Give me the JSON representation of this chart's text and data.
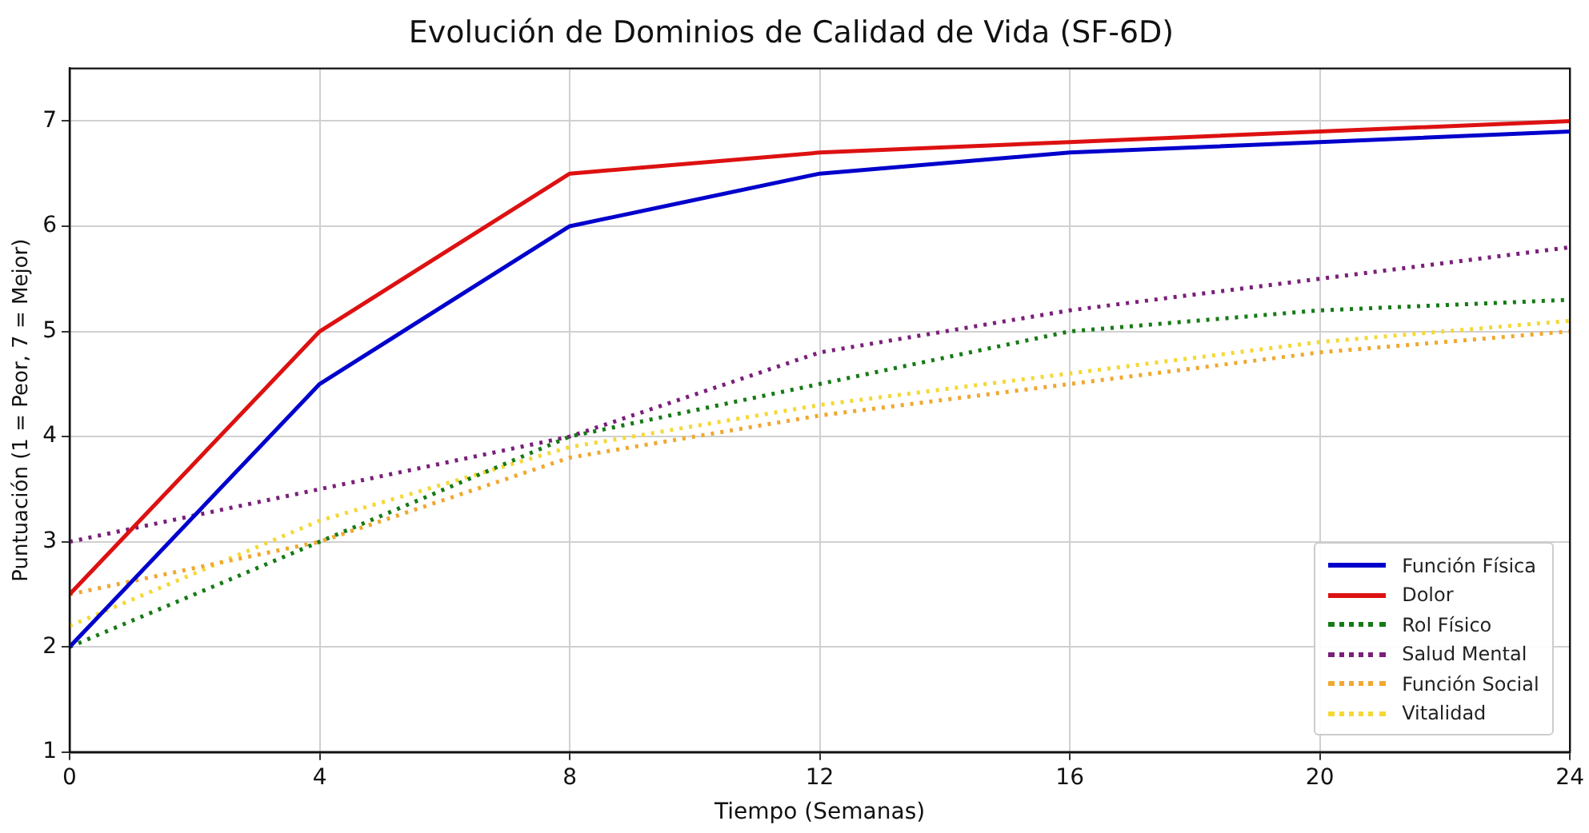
{
  "chart_data": {
    "type": "line",
    "title": "Evolución de Dominios de Calidad de Vida (SF-6D)",
    "xlabel": "Tiempo (Semanas)",
    "ylabel": "Puntuación (1 = Peor, 7 = Mejor)",
    "x": [
      0,
      4,
      8,
      12,
      16,
      20,
      24
    ],
    "series": [
      {
        "name": "Función Física",
        "color": "#0000cc",
        "line_style": "solid",
        "values": [
          2,
          4.5,
          6,
          6.5,
          6.7,
          6.8,
          6.9
        ]
      },
      {
        "name": "Dolor",
        "color": "#dd1111",
        "line_style": "solid",
        "values": [
          2.5,
          5,
          6.5,
          6.7,
          6.8,
          6.9,
          7.0
        ]
      },
      {
        "name": "Rol Físico",
        "color": "#167a16",
        "line_style": "dotted",
        "values": [
          2,
          3,
          4,
          4.5,
          5,
          5.2,
          5.3
        ]
      },
      {
        "name": "Salud Mental",
        "color": "#7a1f7a",
        "line_style": "dotted",
        "values": [
          3,
          3.5,
          4,
          4.8,
          5.2,
          5.5,
          5.8
        ]
      },
      {
        "name": "Función Social",
        "color": "#f0a830",
        "line_style": "dotted",
        "values": [
          2.5,
          3,
          3.8,
          4.2,
          4.5,
          4.8,
          5.0
        ]
      },
      {
        "name": "Vitalidad",
        "color": "#f5d836",
        "line_style": "dotted",
        "values": [
          2.2,
          3.2,
          3.9,
          4.3,
          4.6,
          4.9,
          5.1
        ]
      }
    ],
    "xlim": [
      0,
      24
    ],
    "xticks": [
      0,
      4,
      8,
      12,
      16,
      20,
      24
    ],
    "ylim": [
      1,
      7.5
    ],
    "yticks": [
      1,
      2,
      3,
      4,
      5,
      6,
      7
    ],
    "grid": true,
    "legend": "bottom right",
    "marker": "none"
  }
}
